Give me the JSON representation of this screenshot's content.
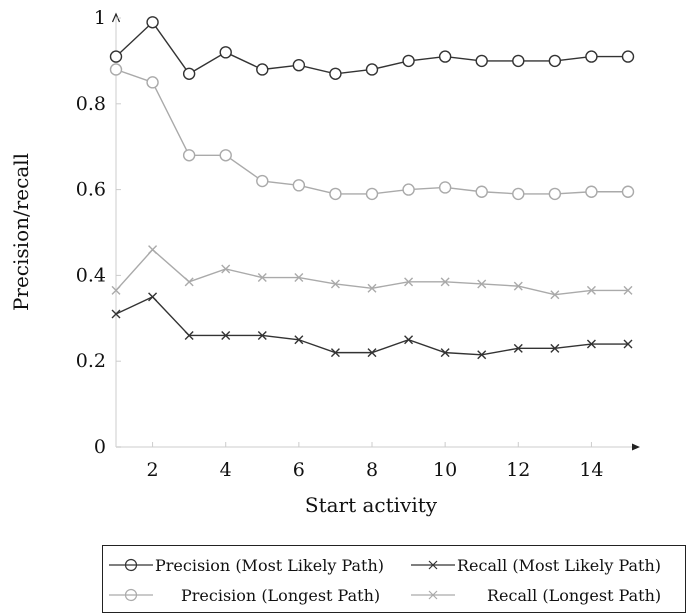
{
  "chart_data": {
    "type": "line",
    "xlabel": "Start activity",
    "ylabel": "Precision/recall",
    "xlim": [
      1,
      15
    ],
    "ylim": [
      0,
      1
    ],
    "xticks": [
      2,
      4,
      6,
      8,
      10,
      12,
      14
    ],
    "yticks": [
      0,
      0.2,
      0.4,
      0.6,
      0.8,
      1
    ],
    "x": [
      1,
      2,
      3,
      4,
      5,
      6,
      7,
      8,
      9,
      10,
      11,
      12,
      13,
      14,
      15
    ],
    "legend_position": "bottom",
    "series": [
      {
        "name": "Precision (Most Likely Path)",
        "marker": "circle",
        "color": "#333333",
        "values": [
          0.91,
          0.99,
          0.87,
          0.92,
          0.88,
          0.89,
          0.87,
          0.88,
          0.9,
          0.91,
          0.9,
          0.9,
          0.9,
          0.91,
          0.91
        ]
      },
      {
        "name": "Recall (Most Likely Path)",
        "marker": "x",
        "color": "#333333",
        "values": [
          0.31,
          0.35,
          0.26,
          0.26,
          0.26,
          0.25,
          0.22,
          0.22,
          0.25,
          0.22,
          0.215,
          0.23,
          0.23,
          0.24,
          0.24
        ]
      },
      {
        "name": "Precision (Longest Path)",
        "marker": "circle",
        "color": "#aaaaaa",
        "values": [
          0.88,
          0.85,
          0.68,
          0.68,
          0.62,
          0.61,
          0.59,
          0.59,
          0.6,
          0.605,
          0.595,
          0.59,
          0.59,
          0.595,
          0.595
        ]
      },
      {
        "name": "Recall (Longest Path)",
        "marker": "x",
        "color": "#aaaaaa",
        "values": [
          0.365,
          0.46,
          0.385,
          0.415,
          0.395,
          0.395,
          0.38,
          0.37,
          0.385,
          0.385,
          0.38,
          0.375,
          0.355,
          0.365,
          0.365
        ]
      }
    ]
  }
}
